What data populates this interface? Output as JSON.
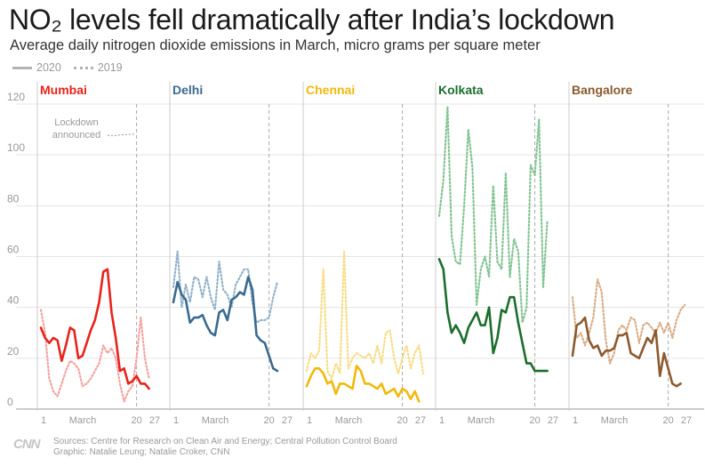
{
  "title": "NO₂ levels fell dramatically after India’s lockdown",
  "subtitle": "Average daily nitrogen dioxide emissions in March, micro grams per square meter",
  "legend": [
    {
      "label": "2020",
      "style": "solid"
    },
    {
      "label": "2019",
      "style": "dotted"
    }
  ],
  "annotation": [
    "Lockdown",
    "announced"
  ],
  "source": "Sources: Centre for Research on Clean Air and Energy; Central Pollution Control Board",
  "credit": "Graphic: Natalie Leung; Natalie Croker, CNN",
  "logo_text": "CNN",
  "chart_data": {
    "type": "line",
    "title": "NO₂ levels fell dramatically after India’s lockdown",
    "ylim": [
      0,
      120
    ],
    "y_ticks": [
      0,
      20,
      40,
      60,
      80,
      100,
      120
    ],
    "x_ticks": [
      "1",
      "March",
      "20",
      "27"
    ],
    "x_range": [
      1,
      29
    ],
    "lockdown_day": 24,
    "grid": true,
    "legend_position": "top-left",
    "panels": [
      {
        "city": "Mumbai",
        "color": "#e8231c",
        "light_color": "#f4a3a0",
        "series": [
          {
            "name": "2020",
            "x": [
              1,
              2,
              3,
              4,
              5,
              6,
              7,
              8,
              9,
              10,
              11,
              12,
              13,
              14,
              15,
              16,
              17,
              18,
              19,
              20,
              21,
              22,
              23,
              24,
              25,
              26,
              27,
              28,
              29
            ],
            "values": [
              32,
              28,
              26,
              28,
              27,
              19,
              25,
              32,
              31,
              20,
              21,
              26,
              31,
              35,
              42,
              54,
              55,
              38,
              28,
              15,
              16,
              10,
              11,
              13,
              10,
              10,
              8,
              null,
              null
            ]
          },
          {
            "name": "2019",
            "x": [
              1,
              2,
              3,
              4,
              5,
              6,
              7,
              8,
              9,
              10,
              11,
              12,
              13,
              14,
              15,
              16,
              17,
              18,
              19,
              20,
              21,
              22,
              23,
              24,
              25,
              26,
              27,
              28,
              29
            ],
            "values": [
              39,
              30,
              12,
              7,
              5,
              10,
              15,
              19,
              18,
              16,
              9,
              10,
              12,
              15,
              18,
              25,
              22,
              24,
              20,
              10,
              3,
              7,
              9,
              20,
              36,
              20,
              12,
              null,
              null
            ]
          }
        ]
      },
      {
        "city": "Delhi",
        "color": "#3a6b8f",
        "light_color": "#93b3cc",
        "series": [
          {
            "name": "2020",
            "x": [
              1,
              2,
              3,
              4,
              5,
              6,
              7,
              8,
              9,
              10,
              11,
              12,
              13,
              14,
              15,
              16,
              17,
              18,
              19,
              20,
              21,
              22,
              23,
              24,
              25,
              26,
              27,
              28,
              29
            ],
            "values": [
              42,
              50,
              45,
              43,
              34,
              36,
              36,
              37,
              33,
              30,
              29,
              38,
              39,
              35,
              43,
              44,
              46,
              45,
              52,
              47,
              29,
              27,
              26,
              21,
              16,
              15,
              null,
              null,
              null
            ]
          },
          {
            "name": "2019",
            "x": [
              1,
              2,
              3,
              4,
              5,
              6,
              7,
              8,
              9,
              10,
              11,
              12,
              13,
              14,
              15,
              16,
              17,
              18,
              19,
              20,
              21,
              22,
              23,
              24,
              25,
              26,
              27,
              28,
              29
            ],
            "values": [
              48,
              62,
              40,
              49,
              42,
              52,
              51,
              44,
              52,
              44,
              39,
              58,
              47,
              45,
              40,
              49,
              52,
              55,
              55,
              42,
              34,
              35,
              35,
              36,
              44,
              50,
              null,
              null,
              null
            ]
          }
        ]
      },
      {
        "city": "Chennai",
        "color": "#f2b90b",
        "light_color": "#f7dd85",
        "series": [
          {
            "name": "2020",
            "x": [
              1,
              2,
              3,
              4,
              5,
              6,
              7,
              8,
              9,
              10,
              11,
              12,
              13,
              14,
              15,
              16,
              17,
              18,
              19,
              20,
              21,
              22,
              23,
              24,
              25,
              26,
              27,
              28,
              29
            ],
            "values": [
              9,
              13,
              16,
              16,
              14,
              10,
              11,
              6,
              10,
              10,
              9,
              8,
              17,
              15,
              10,
              10,
              9,
              8,
              10,
              6,
              7,
              8,
              5,
              8,
              7,
              4,
              7,
              3,
              null
            ]
          },
          {
            "name": "2019",
            "x": [
              1,
              2,
              3,
              4,
              5,
              6,
              7,
              8,
              9,
              10,
              11,
              12,
              13,
              14,
              15,
              16,
              17,
              18,
              19,
              20,
              21,
              22,
              23,
              24,
              25,
              26,
              27,
              28,
              29
            ],
            "values": [
              15,
              22,
              20,
              23,
              55,
              15,
              12,
              18,
              14,
              62,
              16,
              20,
              22,
              21,
              20,
              22,
              18,
              25,
              18,
              30,
              31,
              20,
              14,
              20,
              25,
              16,
              22,
              25,
              14
            ]
          }
        ]
      },
      {
        "city": "Kolkata",
        "color": "#1c6e2d",
        "light_color": "#83c493",
        "series": [
          {
            "name": "2020",
            "x": [
              1,
              2,
              3,
              4,
              5,
              6,
              7,
              8,
              9,
              10,
              11,
              12,
              13,
              14,
              15,
              16,
              17,
              18,
              19,
              20,
              21,
              22,
              23,
              24,
              25,
              26,
              27,
              28,
              29
            ],
            "values": [
              59,
              55,
              38,
              30,
              33,
              30,
              26,
              32,
              35,
              38,
              33,
              33,
              40,
              22,
              28,
              39,
              38,
              44,
              44,
              34,
              26,
              18,
              18,
              15,
              15,
              15,
              15,
              null,
              null
            ]
          },
          {
            "name": "2019",
            "x": [
              1,
              2,
              3,
              4,
              5,
              6,
              7,
              8,
              9,
              10,
              11,
              12,
              13,
              14,
              15,
              16,
              17,
              18,
              19,
              20,
              21,
              22,
              23,
              24,
              25,
              26,
              27,
              28,
              29
            ],
            "values": [
              76,
              90,
              119,
              68,
              58,
              57,
              80,
              110,
              95,
              41,
              55,
              60,
              52,
              88,
              58,
              55,
              93,
              52,
              67,
              62,
              34,
              40,
              96,
              92,
              114,
              48,
              74,
              null,
              null
            ]
          }
        ]
      },
      {
        "city": "Bangalore",
        "color": "#8c5a2e",
        "light_color": "#d9ad86",
        "series": [
          {
            "name": "2020",
            "x": [
              1,
              2,
              3,
              4,
              5,
              6,
              7,
              8,
              9,
              10,
              11,
              12,
              13,
              14,
              15,
              16,
              17,
              18,
              19,
              20,
              21,
              22,
              23,
              24,
              25,
              26,
              27,
              28,
              29
            ],
            "values": [
              21,
              33,
              34,
              36,
              27,
              24,
              25,
              21,
              23,
              23,
              24,
              29,
              29,
              30,
              22,
              21,
              20,
              24,
              28,
              26,
              31,
              13,
              22,
              16,
              10,
              9,
              10,
              null,
              null
            ]
          },
          {
            "name": "2019",
            "x": [
              1,
              2,
              3,
              4,
              5,
              6,
              7,
              8,
              9,
              10,
              11,
              12,
              13,
              14,
              15,
              16,
              17,
              18,
              19,
              20,
              21,
              22,
              23,
              24,
              25,
              26,
              27,
              28,
              29
            ],
            "values": [
              44,
              28,
              30,
              25,
              30,
              36,
              51,
              46,
              27,
              18,
              22,
              31,
              33,
              31,
              36,
              35,
              26,
              33,
              34,
              32,
              30,
              34,
              30,
              34,
              28,
              35,
              39,
              41,
              null
            ]
          }
        ]
      }
    ]
  }
}
